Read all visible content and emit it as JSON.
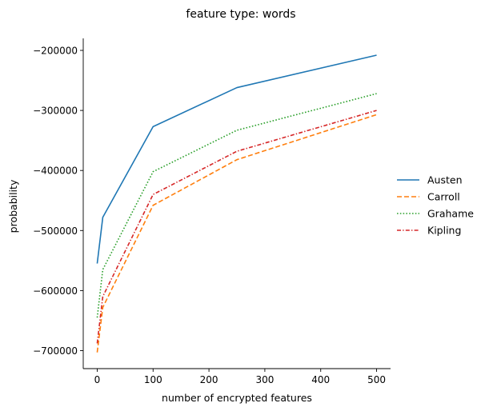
{
  "chart_data": {
    "type": "line",
    "title": "feature type: words",
    "xlabel": "number of encrypted features",
    "ylabel": "probability",
    "x": [
      0,
      10,
      100,
      250,
      500
    ],
    "xlim": [
      -25,
      525
    ],
    "ylim": [
      -730000,
      -180000
    ],
    "xticks": [
      0,
      100,
      200,
      300,
      400,
      500
    ],
    "yticks": [
      -700000,
      -600000,
      -500000,
      -400000,
      -300000,
      -200000
    ],
    "xtick_labels": [
      "0",
      "100",
      "200",
      "300",
      "400",
      "500"
    ],
    "ytick_labels": [
      "−700000",
      "−600000",
      "−500000",
      "−400000",
      "−300000",
      "−200000"
    ],
    "grid": false,
    "legend_position": "right",
    "series": [
      {
        "name": "Austen",
        "values": [
          -555000,
          -478000,
          -327000,
          -262000,
          -208000
        ],
        "color": "#1f77b4",
        "dash": "solid"
      },
      {
        "name": "Carroll",
        "values": [
          -703000,
          -628000,
          -458000,
          -382000,
          -307000
        ],
        "color": "#ff7f0e",
        "dash": "dashed"
      },
      {
        "name": "Grahame",
        "values": [
          -645000,
          -565000,
          -402000,
          -333000,
          -272000
        ],
        "color": "#2ca02c",
        "dash": "dotted"
      },
      {
        "name": "Kipling",
        "values": [
          -688000,
          -610000,
          -440000,
          -368000,
          -300000
        ],
        "color": "#d62728",
        "dash": "dashdot"
      }
    ]
  }
}
